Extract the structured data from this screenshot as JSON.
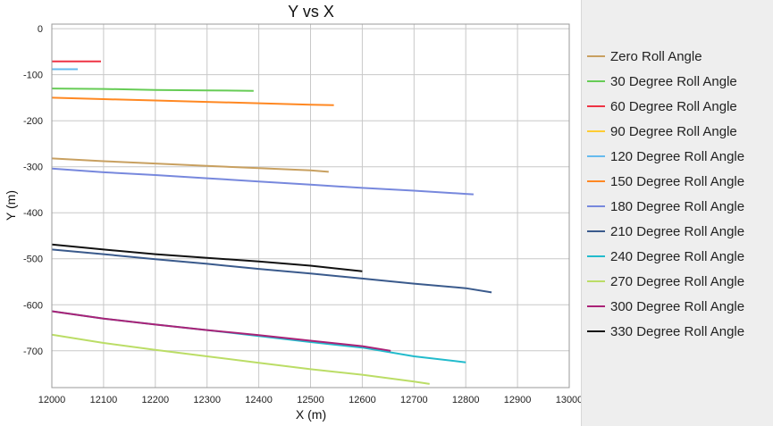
{
  "chart_data": {
    "type": "line",
    "title": "Y vs X",
    "xlabel": "X (m)",
    "ylabel": "Y (m)",
    "xlim": [
      12000,
      13000
    ],
    "ylim": [
      -780,
      10
    ],
    "xticks": [
      12000,
      12100,
      12200,
      12300,
      12400,
      12500,
      12600,
      12700,
      12800,
      12900,
      13000
    ],
    "yticks": [
      0,
      -100,
      -200,
      -300,
      -400,
      -500,
      -600,
      -700
    ],
    "xtick_labels": [
      "12000",
      "12100",
      "12200",
      "12300",
      "12400",
      "12500",
      "12600",
      "12700",
      "12800",
      "12900",
      "13000"
    ],
    "ytick_labels": [
      "0",
      "-100",
      "-200",
      "-300",
      "-400",
      "-500",
      "-600",
      "-700"
    ],
    "grid": true,
    "legend_position": "right",
    "series": [
      {
        "name": "Zero Roll Angle",
        "color": "#c8a060",
        "x": [
          12000,
          12100,
          12200,
          12300,
          12400,
          12500,
          12535
        ],
        "y": [
          -282,
          -288,
          -293,
          -298,
          -303,
          -308,
          -311
        ]
      },
      {
        "name": "30 Degree Roll Angle",
        "color": "#66cc55",
        "x": [
          12000,
          12100,
          12200,
          12300,
          12390
        ],
        "y": [
          -130,
          -131,
          -133,
          -134,
          -135
        ]
      },
      {
        "name": "60 Degree Roll Angle",
        "color": "#ee3344",
        "x": [
          12000,
          12095
        ],
        "y": [
          -71,
          -71
        ]
      },
      {
        "name": "90 Degree Roll Angle",
        "color": "#ffcc33",
        "x": [],
        "y": []
      },
      {
        "name": "120 Degree Roll Angle",
        "color": "#66bbee",
        "x": [
          12000,
          12050
        ],
        "y": [
          -88,
          -88
        ]
      },
      {
        "name": "150 Degree Roll Angle",
        "color": "#ff8822",
        "x": [
          12000,
          12100,
          12200,
          12300,
          12400,
          12500,
          12545
        ],
        "y": [
          -150,
          -153,
          -156,
          -159,
          -162,
          -165,
          -166
        ]
      },
      {
        "name": "180 Degree Roll Angle",
        "color": "#7788dd",
        "x": [
          12000,
          12100,
          12200,
          12300,
          12400,
          12500,
          12600,
          12700,
          12800,
          12815
        ],
        "y": [
          -304,
          -312,
          -318,
          -325,
          -332,
          -339,
          -346,
          -352,
          -359,
          -360
        ]
      },
      {
        "name": "210 Degree Roll Angle",
        "color": "#3a5a8c",
        "x": [
          12000,
          12100,
          12200,
          12300,
          12400,
          12500,
          12600,
          12700,
          12800,
          12850
        ],
        "y": [
          -480,
          -490,
          -501,
          -511,
          -522,
          -532,
          -543,
          -554,
          -564,
          -573
        ]
      },
      {
        "name": "240 Degree Roll Angle",
        "color": "#22bbcc",
        "x": [
          12000,
          12100,
          12200,
          12300,
          12400,
          12500,
          12600,
          12700,
          12800
        ],
        "y": [
          -614,
          -630,
          -643,
          -655,
          -668,
          -681,
          -693,
          -712,
          -725
        ]
      },
      {
        "name": "270 Degree Roll Angle",
        "color": "#bbdd66",
        "x": [
          12000,
          12100,
          12200,
          12300,
          12400,
          12500,
          12600,
          12700,
          12730
        ],
        "y": [
          -665,
          -683,
          -698,
          -712,
          -726,
          -740,
          -752,
          -767,
          -772
        ]
      },
      {
        "name": "300 Degree Roll Angle",
        "color": "#aa2277",
        "x": [
          12000,
          12100,
          12200,
          12300,
          12400,
          12500,
          12600,
          12655
        ],
        "y": [
          -614,
          -630,
          -643,
          -655,
          -666,
          -678,
          -690,
          -700
        ]
      },
      {
        "name": "330 Degree Roll Angle",
        "color": "#111111",
        "x": [
          12000,
          12100,
          12200,
          12300,
          12400,
          12500,
          12600
        ],
        "y": [
          -469,
          -480,
          -490,
          -498,
          -506,
          -515,
          -527
        ]
      }
    ]
  }
}
